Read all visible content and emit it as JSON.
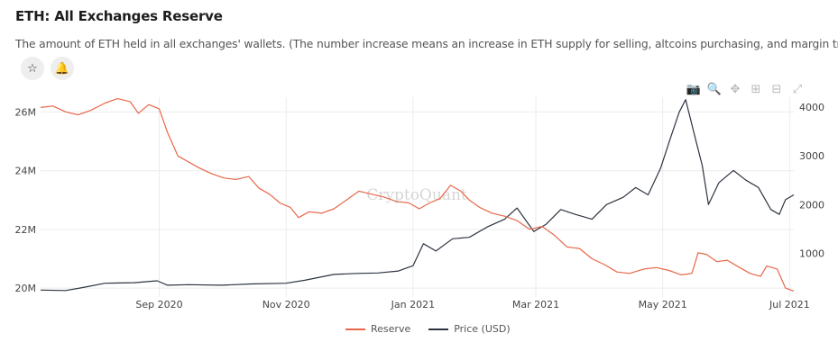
{
  "header": {
    "title": "ETH: All Exchanges Reserve",
    "subtitle": "The amount of ETH held in all exchanges' wallets. (The number increase means an increase in ETH supply for selling, altcoins purchasing, and margin trading.)"
  },
  "actions": {
    "star_icon": "star-icon",
    "bell_icon": "bell-icon"
  },
  "toolbar": [
    "camera-icon",
    "zoom-icon",
    "pan-icon",
    "zoom-in-icon",
    "zoom-out-icon",
    "autoscale-icon"
  ],
  "watermark": "CryptoQuant",
  "colors": {
    "reserve": "#e8674a",
    "price": "#2d3440",
    "grid": "#ececec"
  },
  "chart_data": {
    "type": "line",
    "x_range": [
      "2020-07-06",
      "2021-07-03"
    ],
    "x_ticks": [
      {
        "label": "Sep 2020",
        "date": "2020-09-01"
      },
      {
        "label": "Nov 2020",
        "date": "2020-11-01"
      },
      {
        "label": "Jan 2021",
        "date": "2021-01-01"
      },
      {
        "label": "Mar 2021",
        "date": "2021-03-01"
      },
      {
        "label": "May 2021",
        "date": "2021-05-01"
      },
      {
        "label": "Jul 2021",
        "date": "2021-07-01"
      }
    ],
    "y_left": {
      "range": [
        19850000,
        26500000
      ],
      "ticks": [
        {
          "label": "20M",
          "value": 20000000
        },
        {
          "label": "22M",
          "value": 22000000
        },
        {
          "label": "24M",
          "value": 24000000
        },
        {
          "label": "26M",
          "value": 26000000
        }
      ]
    },
    "y_right": {
      "range": [
        200,
        4200
      ],
      "ticks": [
        {
          "label": "1000",
          "value": 1000
        },
        {
          "label": "2000",
          "value": 2000
        },
        {
          "label": "3000",
          "value": 3000
        },
        {
          "label": "4000",
          "value": 4000
        }
      ]
    },
    "grid": true,
    "legend_position": "bottom",
    "series": [
      {
        "name": "Reserve",
        "axis": "left",
        "points": [
          [
            "2020-07-06",
            26150000
          ],
          [
            "2020-07-12",
            26200000
          ],
          [
            "2020-07-18",
            26000000
          ],
          [
            "2020-07-24",
            25900000
          ],
          [
            "2020-07-30",
            26050000
          ],
          [
            "2020-08-06",
            26300000
          ],
          [
            "2020-08-12",
            26450000
          ],
          [
            "2020-08-18",
            26350000
          ],
          [
            "2020-08-22",
            25950000
          ],
          [
            "2020-08-27",
            26250000
          ],
          [
            "2020-09-01",
            26100000
          ],
          [
            "2020-09-05",
            25300000
          ],
          [
            "2020-09-10",
            24500000
          ],
          [
            "2020-09-15",
            24300000
          ],
          [
            "2020-09-20",
            24100000
          ],
          [
            "2020-09-26",
            23900000
          ],
          [
            "2020-10-02",
            23750000
          ],
          [
            "2020-10-08",
            23700000
          ],
          [
            "2020-10-14",
            23800000
          ],
          [
            "2020-10-19",
            23400000
          ],
          [
            "2020-10-24",
            23200000
          ],
          [
            "2020-10-29",
            22900000
          ],
          [
            "2020-11-03",
            22750000
          ],
          [
            "2020-11-07",
            22400000
          ],
          [
            "2020-11-12",
            22600000
          ],
          [
            "2020-11-18",
            22550000
          ],
          [
            "2020-11-24",
            22700000
          ],
          [
            "2020-11-30",
            23000000
          ],
          [
            "2020-12-06",
            23300000
          ],
          [
            "2020-12-12",
            23200000
          ],
          [
            "2020-12-18",
            23100000
          ],
          [
            "2020-12-24",
            22950000
          ],
          [
            "2020-12-30",
            22900000
          ],
          [
            "2021-01-04",
            22700000
          ],
          [
            "2021-01-09",
            22900000
          ],
          [
            "2021-01-14",
            23050000
          ],
          [
            "2021-01-19",
            23500000
          ],
          [
            "2021-01-24",
            23300000
          ],
          [
            "2021-01-28",
            23000000
          ],
          [
            "2021-02-02",
            22750000
          ],
          [
            "2021-02-08",
            22550000
          ],
          [
            "2021-02-14",
            22450000
          ],
          [
            "2021-02-20",
            22300000
          ],
          [
            "2021-02-26",
            22000000
          ],
          [
            "2021-03-04",
            22100000
          ],
          [
            "2021-03-10",
            21800000
          ],
          [
            "2021-03-16",
            21400000
          ],
          [
            "2021-03-22",
            21350000
          ],
          [
            "2021-03-28",
            21000000
          ],
          [
            "2021-04-03",
            20800000
          ],
          [
            "2021-04-09",
            20550000
          ],
          [
            "2021-04-15",
            20500000
          ],
          [
            "2021-04-22",
            20650000
          ],
          [
            "2021-04-28",
            20700000
          ],
          [
            "2021-05-04",
            20600000
          ],
          [
            "2021-05-10",
            20450000
          ],
          [
            "2021-05-15",
            20500000
          ],
          [
            "2021-05-18",
            21200000
          ],
          [
            "2021-05-22",
            21150000
          ],
          [
            "2021-05-27",
            20900000
          ],
          [
            "2021-06-01",
            20950000
          ],
          [
            "2021-06-07",
            20700000
          ],
          [
            "2021-06-12",
            20500000
          ],
          [
            "2021-06-17",
            20400000
          ],
          [
            "2021-06-20",
            20750000
          ],
          [
            "2021-06-25",
            20650000
          ],
          [
            "2021-06-29",
            20000000
          ],
          [
            "2021-07-03",
            19900000
          ]
        ]
      },
      {
        "name": "Price (USD)",
        "axis": "right",
        "points": [
          [
            "2020-07-06",
            250
          ],
          [
            "2020-07-18",
            240
          ],
          [
            "2020-07-26",
            300
          ],
          [
            "2020-08-06",
            390
          ],
          [
            "2020-08-20",
            400
          ],
          [
            "2020-08-31",
            440
          ],
          [
            "2020-09-05",
            350
          ],
          [
            "2020-09-15",
            360
          ],
          [
            "2020-10-01",
            350
          ],
          [
            "2020-10-15",
            375
          ],
          [
            "2020-11-01",
            390
          ],
          [
            "2020-11-10",
            450
          ],
          [
            "2020-11-24",
            570
          ],
          [
            "2020-12-05",
            590
          ],
          [
            "2020-12-15",
            600
          ],
          [
            "2020-12-25",
            640
          ],
          [
            "2021-01-01",
            750
          ],
          [
            "2021-01-06",
            1200
          ],
          [
            "2021-01-12",
            1050
          ],
          [
            "2021-01-20",
            1300
          ],
          [
            "2021-01-28",
            1330
          ],
          [
            "2021-02-06",
            1550
          ],
          [
            "2021-02-14",
            1700
          ],
          [
            "2021-02-20",
            1930
          ],
          [
            "2021-02-28",
            1450
          ],
          [
            "2021-03-06",
            1600
          ],
          [
            "2021-03-13",
            1900
          ],
          [
            "2021-03-20",
            1800
          ],
          [
            "2021-03-28",
            1700
          ],
          [
            "2021-04-04",
            2000
          ],
          [
            "2021-04-12",
            2150
          ],
          [
            "2021-04-18",
            2350
          ],
          [
            "2021-04-24",
            2200
          ],
          [
            "2021-04-30",
            2750
          ],
          [
            "2021-05-05",
            3400
          ],
          [
            "2021-05-09",
            3900
          ],
          [
            "2021-05-12",
            4150
          ],
          [
            "2021-05-17",
            3300
          ],
          [
            "2021-05-20",
            2800
          ],
          [
            "2021-05-23",
            2000
          ],
          [
            "2021-05-28",
            2450
          ],
          [
            "2021-06-04",
            2700
          ],
          [
            "2021-06-10",
            2500
          ],
          [
            "2021-06-16",
            2350
          ],
          [
            "2021-06-22",
            1900
          ],
          [
            "2021-06-26",
            1800
          ],
          [
            "2021-06-29",
            2100
          ],
          [
            "2021-07-03",
            2200
          ]
        ]
      }
    ]
  }
}
